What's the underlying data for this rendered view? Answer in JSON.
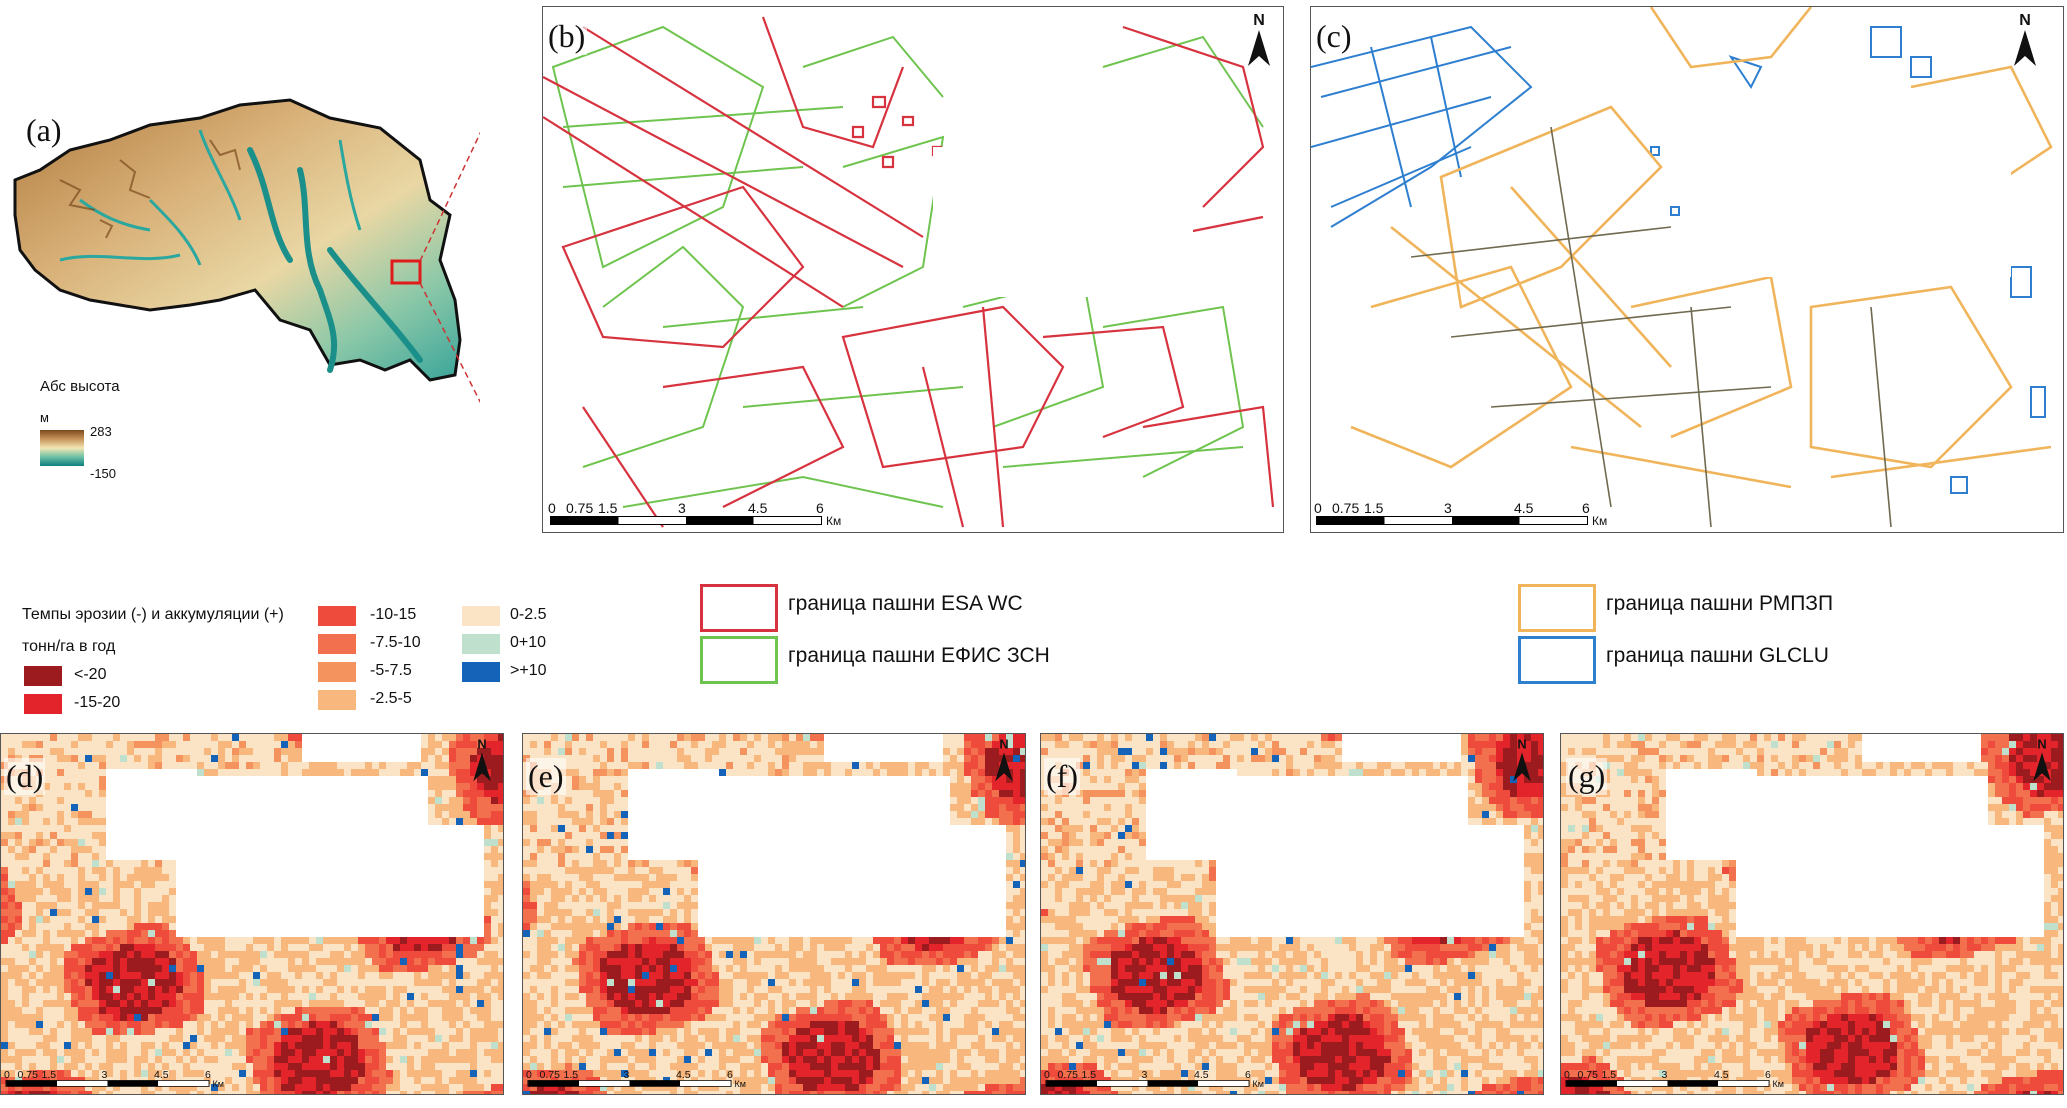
{
  "panels": {
    "a": "(a)",
    "b": "(b)",
    "c": "(c)",
    "d": "(d)",
    "e": "(e)",
    "f": "(f)",
    "g": "(g)"
  },
  "north_label": "N",
  "elevation_legend": {
    "title": "Абс высота",
    "unit": "м",
    "max": "283",
    "min": "-150",
    "colors": [
      "#7a4a1c",
      "#c7935a",
      "#f3e6b3",
      "#6cc0a6",
      "#0d7f80"
    ]
  },
  "scale": {
    "ticks": [
      "0",
      "0.75",
      "1.5",
      "3",
      "4.5",
      "6"
    ],
    "unit": "Км"
  },
  "erosion_legend": {
    "title_line1": "Темпы эрозии (-) и аккумуляции (+)",
    "title_line2": "тонн/га в год",
    "classes": [
      {
        "label": "<-20",
        "color": "#9b1b1e"
      },
      {
        "label": "-15-20",
        "color": "#e3252b"
      },
      {
        "label": "-10-15",
        "color": "#ee4b3c"
      },
      {
        "label": "-7.5-10",
        "color": "#f2704d"
      },
      {
        "label": "-5-7.5",
        "color": "#f5935e"
      },
      {
        "label": "-2.5-5",
        "color": "#f8b77c"
      },
      {
        "label": "0-2.5",
        "color": "#fbe3c6"
      },
      {
        "label": "0+10",
        "color": "#bfe0cc"
      },
      {
        "label": ">+10",
        "color": "#1463b8"
      }
    ]
  },
  "boundary_legend": [
    {
      "label": "граница пашни ESA WC",
      "color": "#d7333f"
    },
    {
      "label": "граница пашни ЕФИС ЗСН",
      "color": "#6fc44f"
    },
    {
      "label": "граница пашни РМПЗП",
      "color": "#f0b45a"
    },
    {
      "label": "граница пашни GLCLU",
      "color": "#2e7fd0"
    }
  ]
}
